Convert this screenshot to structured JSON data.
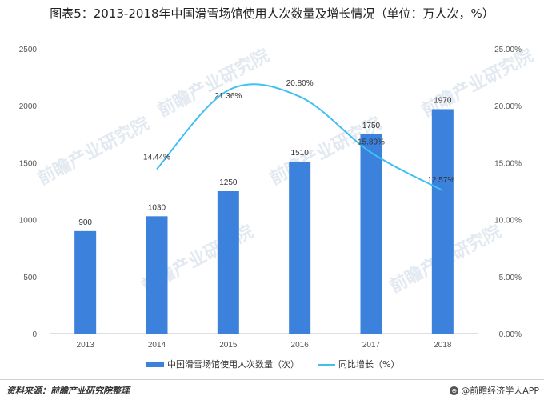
{
  "title": "图表5：2013-2018年中国滑雪场馆使用人次数量及增长情况（单位：万人次，%）",
  "source": "资料来源：前瞻产业研究院整理",
  "brand": "@前瞻经济学人APP",
  "watermark": "前瞻产业研究院",
  "colors": {
    "bar": "#3c82dd",
    "line": "#3fc0f0"
  },
  "chart_data": {
    "type": "bar",
    "categories": [
      "2013",
      "2014",
      "2015",
      "2016",
      "2017",
      "2018"
    ],
    "series": [
      {
        "name": "中国滑雪场馆使用人次数量（次）",
        "type": "bar",
        "axis": "left",
        "values": [
          900,
          1030,
          1250,
          1510,
          1750,
          1970
        ],
        "labels": [
          "900",
          "1030",
          "1250",
          "1510",
          "1750",
          "1970"
        ]
      },
      {
        "name": "同比增长（%）",
        "type": "line",
        "axis": "right",
        "values": [
          null,
          14.44,
          21.36,
          20.8,
          15.89,
          12.57
        ],
        "labels": [
          "",
          "14.44%",
          "21.36%",
          "20.80%",
          "15.89%",
          "12.57%"
        ]
      }
    ],
    "yleft": {
      "min": 0,
      "max": 2500,
      "ticks": [
        "0",
        "500",
        "1000",
        "1500",
        "2000",
        "2500"
      ]
    },
    "yright": {
      "min": 0,
      "max": 25,
      "ticks": [
        "0.00%",
        "5.00%",
        "10.00%",
        "15.00%",
        "20.00%",
        "25.00%"
      ]
    },
    "grid": false,
    "legend": "bottom"
  }
}
